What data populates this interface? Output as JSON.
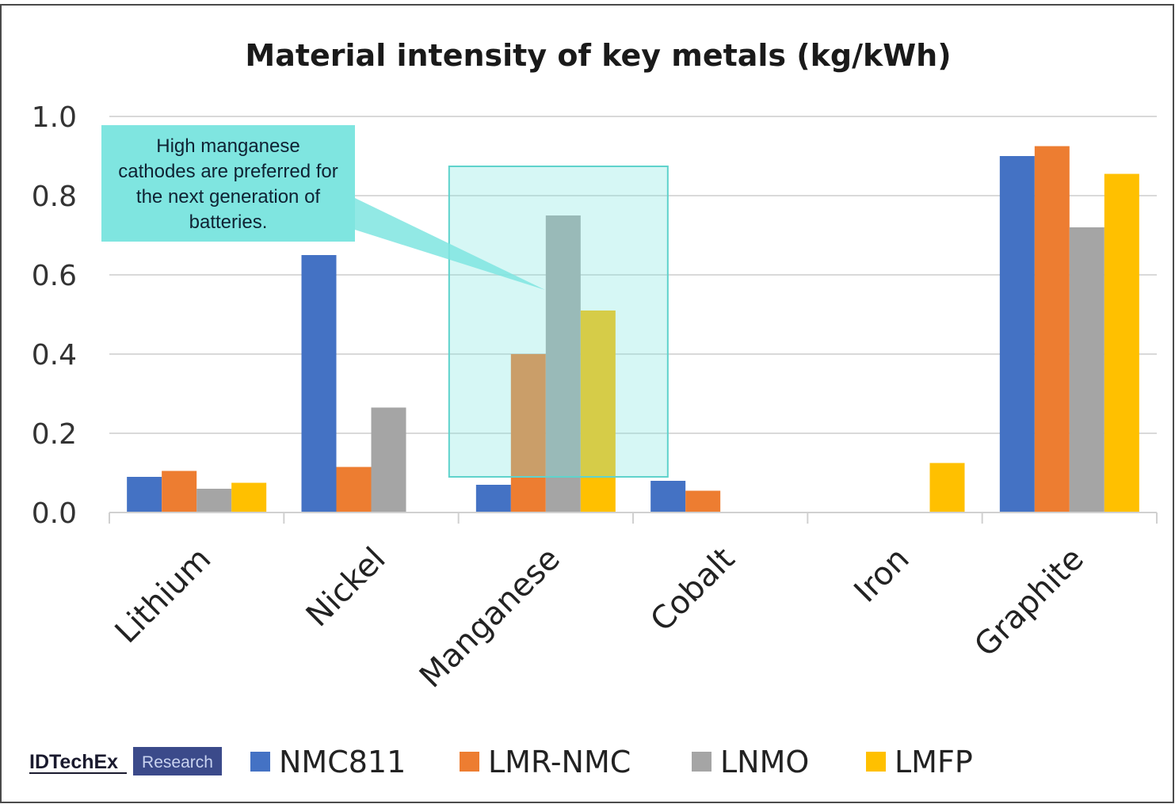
{
  "chart_data": {
    "type": "bar",
    "title": "Material intensity of key metals (kg/kWh)",
    "xlabel": "",
    "ylabel": "",
    "ylim": [
      0,
      1.0
    ],
    "yticks": [
      "0.0",
      "0.2",
      "0.4",
      "0.6",
      "0.8",
      "1.0"
    ],
    "grid": true,
    "legend_position": "bottom",
    "categories": [
      "Lithium",
      "Nickel",
      "Manganese",
      "Cobalt",
      "Iron",
      "Graphite"
    ],
    "series": [
      {
        "name": "NMC811",
        "color": "#4472C4",
        "values": [
          0.09,
          0.65,
          0.07,
          0.08,
          0.0,
          0.9
        ]
      },
      {
        "name": "LMR-NMC",
        "color": "#ED7D31",
        "values": [
          0.105,
          0.115,
          0.4,
          0.055,
          0.0,
          0.925
        ]
      },
      {
        "name": "LNMO",
        "color": "#A5A5A5",
        "values": [
          0.06,
          0.265,
          0.75,
          0.0,
          0.0,
          0.72
        ]
      },
      {
        "name": "LMFP",
        "color": "#FFC000",
        "values": [
          0.075,
          0.0,
          0.51,
          0.0,
          0.125,
          0.855
        ]
      }
    ],
    "annotation": {
      "text_lines": [
        "High manganese",
        "cathodes are preferred for",
        "the next generation of",
        "batteries."
      ],
      "highlight_category": "Manganese",
      "color": "#7FE5E0"
    }
  },
  "branding": {
    "logo_name": "IDTechEx",
    "logo_sub": "Research"
  }
}
